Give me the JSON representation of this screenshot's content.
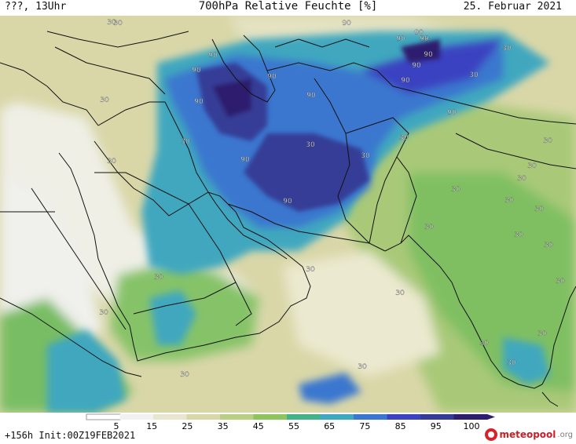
{
  "header": {
    "left": "???, 13Uhr",
    "title": "700hPa Relative Feuchte [%]",
    "date": "25. Februar 2021"
  },
  "colorbar": {
    "labels": [
      "5",
      "15",
      "25",
      "35",
      "45",
      "55",
      "65",
      "75",
      "85",
      "95",
      "100"
    ],
    "colors": [
      "#ffffff",
      "#f2f2f2",
      "#e9e6cf",
      "#d9d7a8",
      "#b8cf83",
      "#8ec45e",
      "#43b28a",
      "#3fa7bf",
      "#3b77cf",
      "#3b43c1",
      "#343c96",
      "#2e1e6e"
    ]
  },
  "map_labels": [
    "30",
    "90",
    "90",
    "90",
    "90",
    "90",
    "90",
    "90",
    "30",
    "30",
    "90",
    "90",
    "90",
    "30",
    "90",
    "90",
    "90",
    "30",
    "30",
    "90",
    "30",
    "30",
    "30",
    "30",
    "30",
    "30",
    "30",
    "30",
    "30",
    "30",
    "30",
    "30",
    "30",
    "30",
    "30",
    "30",
    "30",
    "30",
    "30",
    "30",
    "30",
    "30",
    "30",
    "30",
    "99"
  ],
  "footer": {
    "run_info": "+156h  Init:00Z19FEB2021",
    "brand_name": "meteopool",
    "brand_tld": ".org"
  }
}
